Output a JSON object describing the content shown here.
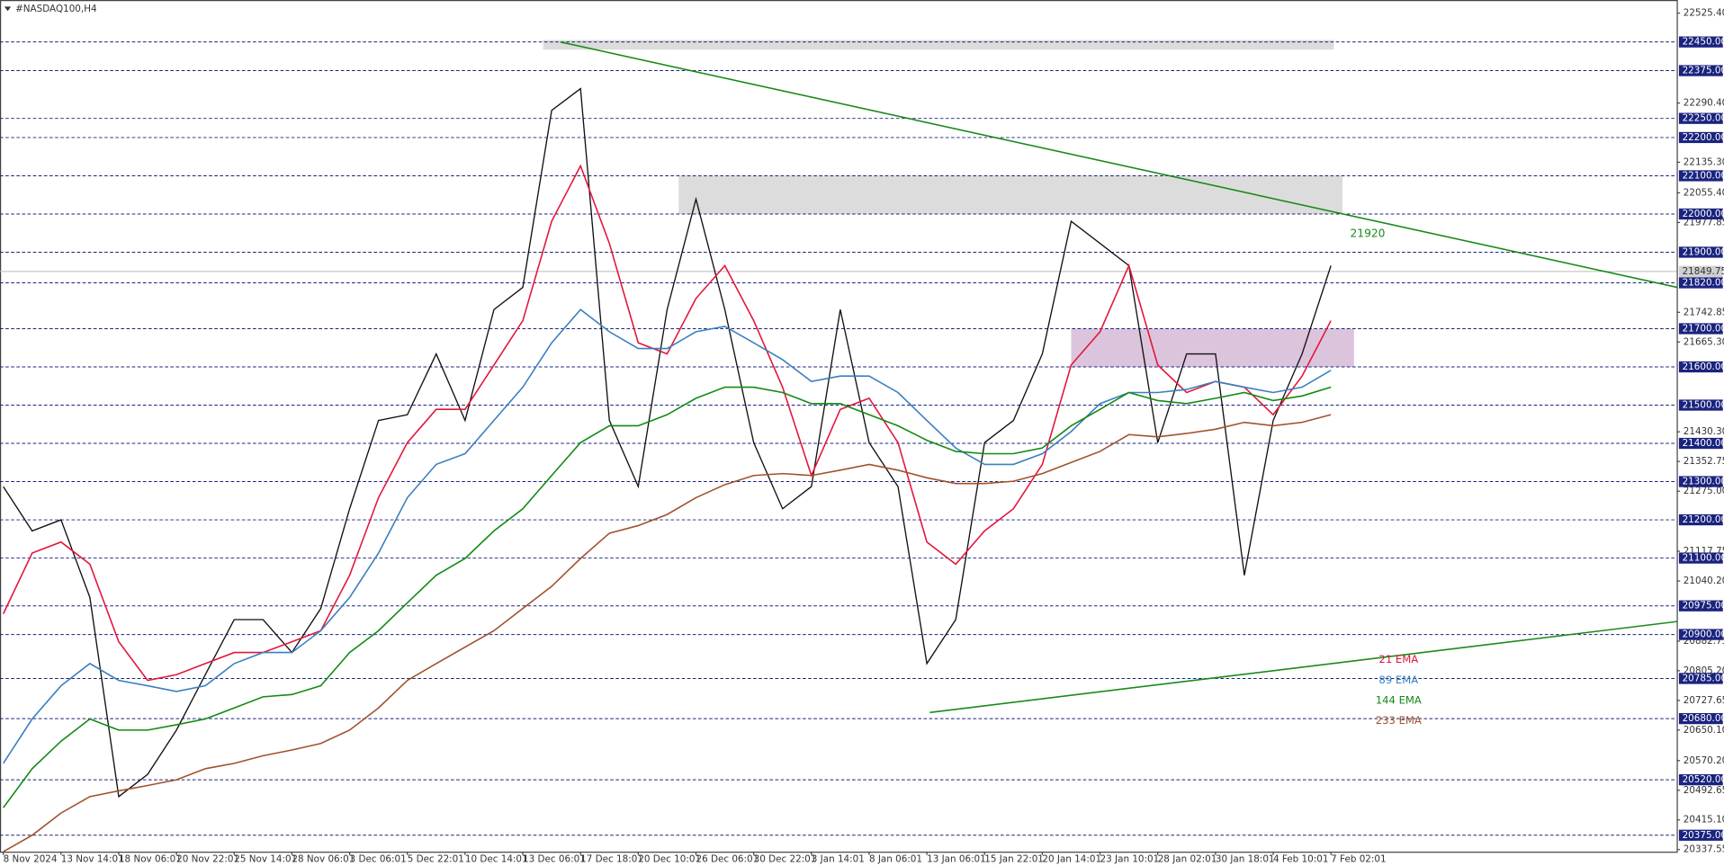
{
  "chart_data": {
    "type": "line",
    "title": "#NASDAQ100,H4",
    "categories": [
      "8 Nov 2024",
      null,
      "13 Nov 14:01",
      null,
      "18 Nov 06:01",
      null,
      "20 Nov 22:01",
      null,
      "25 Nov 14:01",
      null,
      "28 Nov 06:01",
      null,
      "3 Dec 06:01",
      null,
      "5 Dec 22:01",
      null,
      "10 Dec 14:01",
      null,
      "13 Dec 06:01",
      null,
      "17 Dec 18:01",
      null,
      "20 Dec 10:01",
      null,
      "26 Dec 06:01",
      null,
      "30 Dec 22:01",
      null,
      "3 Jan 14:01",
      null,
      "8 Jan 06:01",
      null,
      "13 Jan 06:01",
      null,
      "15 Jan 22:01",
      null,
      "20 Jan 14:01",
      null,
      "23 Jan 10:01",
      null,
      "28 Jan 02:01",
      null,
      "30 Jan 18:01",
      null,
      "4 Feb 10:01",
      null,
      "7 Feb 02:01"
    ],
    "series": [
      {
        "color": "#111111",
        "values": [
          21287,
          21171,
          21200,
          20997,
          20476,
          20534,
          20650,
          20795,
          20939,
          20939,
          20853,
          20968,
          21229,
          21460,
          21475,
          21634,
          21460,
          21750,
          21808,
          22271,
          22328,
          21460,
          21287,
          21750,
          22039,
          21750,
          21402,
          21229,
          21287,
          21750,
          21402,
          21287,
          20824,
          20939,
          21402,
          21460,
          21634,
          21981,
          21923,
          21865,
          21402,
          21634,
          21634,
          21055,
          21460,
          21634,
          21865
        ]
      },
      {
        "name": "21 EMA",
        "color": "#e3163a",
        "values": [
          20954,
          21113,
          21142,
          21084,
          20881,
          20780,
          20795,
          20824,
          20853,
          20853,
          20881,
          20910,
          21055,
          21258,
          21402,
          21489,
          21489,
          21605,
          21721,
          21981,
          22126,
          21923,
          21663,
          21634,
          21779,
          21865,
          21721,
          21547,
          21316,
          21489,
          21518,
          21402,
          21142,
          21084,
          21171,
          21229,
          21345,
          21605,
          21692,
          21865,
          21605,
          21533,
          21562,
          21547,
          21475,
          21576,
          21721
        ]
      },
      {
        "name": "89 EMA",
        "color": "#3a7fc0",
        "values": [
          20563,
          20679,
          20766,
          20824,
          20780,
          20766,
          20751,
          20766,
          20824,
          20853,
          20853,
          20910,
          20997,
          21113,
          21258,
          21345,
          21373,
          21460,
          21547,
          21663,
          21750,
          21692,
          21648,
          21648,
          21692,
          21706,
          21663,
          21619,
          21562,
          21576,
          21576,
          21533,
          21460,
          21388,
          21345,
          21345,
          21373,
          21431,
          21504,
          21533,
          21533,
          21541,
          21562,
          21547,
          21533,
          21547,
          21591
        ]
      },
      {
        "name": "144 EMA",
        "color": "#138a13",
        "values": [
          20447,
          20549,
          20621,
          20679,
          20650,
          20650,
          20664,
          20679,
          20708,
          20737,
          20743,
          20766,
          20853,
          20910,
          20983,
          21055,
          21099,
          21171,
          21229,
          21316,
          21402,
          21446,
          21446,
          21475,
          21518,
          21547,
          21547,
          21533,
          21504,
          21504,
          21475,
          21446,
          21408,
          21379,
          21373,
          21373,
          21388,
          21446,
          21489,
          21533,
          21512,
          21504,
          21518,
          21533,
          21512,
          21524,
          21547
        ]
      },
      {
        "name": "233 EMA",
        "color": "#a0522d",
        "values": [
          20332,
          20375,
          20433,
          20476,
          20491,
          20505,
          20520,
          20549,
          20563,
          20583,
          20598,
          20615,
          20650,
          20708,
          20780,
          20824,
          20867,
          20910,
          20968,
          21026,
          21099,
          21165,
          21185,
          21214,
          21258,
          21292,
          21316,
          21321,
          21316,
          21330,
          21345,
          21330,
          21310,
          21295,
          21295,
          21301,
          21321,
          21350,
          21379,
          21423,
          21417,
          21426,
          21437,
          21455,
          21446,
          21455,
          21475
        ]
      }
    ],
    "ylim": [
      20332,
      22554
    ],
    "yticks": [
      {
        "value": 22525.4,
        "label": "22525.40"
      },
      {
        "value": 22290.4,
        "label": "22290.40"
      },
      {
        "value": 22135.3,
        "label": "22135.30"
      },
      {
        "value": 22055.4,
        "label": "22055.40"
      },
      {
        "value": 21977.85,
        "label": "21977.85"
      },
      {
        "value": 21742.85,
        "label": "21742.85"
      },
      {
        "value": 21665.3,
        "label": "21665.30"
      },
      {
        "value": 21430.3,
        "label": "21430.30"
      },
      {
        "value": 21352.75,
        "label": "21352.75"
      },
      {
        "value": 21275,
        "label": "21275.00"
      },
      {
        "value": 21117.75,
        "label": "21117.75"
      },
      {
        "value": 21040.2,
        "label": "21040.20"
      },
      {
        "value": 20882.75,
        "label": "20882.75"
      },
      {
        "value": 20805.2,
        "label": "20805.20"
      },
      {
        "value": 20727.65,
        "label": "20727.65"
      },
      {
        "value": 20650.1,
        "label": "20650.10"
      },
      {
        "value": 20570.2,
        "label": "20570.20"
      },
      {
        "value": 20492.65,
        "label": "20492.65"
      },
      {
        "value": 20415.1,
        "label": "20415.10"
      },
      {
        "value": 20337.55,
        "label": "20337.55"
      }
    ],
    "levels": [
      {
        "value": 22450,
        "label": "22450.00"
      },
      {
        "value": 22375,
        "label": "22375.00"
      },
      {
        "value": 22250,
        "label": "22250.00"
      },
      {
        "value": 22200,
        "label": "22200.00"
      },
      {
        "value": 22100,
        "label": "22100.00"
      },
      {
        "value": 22000,
        "label": "22000.00"
      },
      {
        "value": 21900,
        "label": "21900.00"
      },
      {
        "value": 21820,
        "label": "21820.00"
      },
      {
        "value": 21700,
        "label": "21700.00"
      },
      {
        "value": 21600,
        "label": "21600.00"
      },
      {
        "value": 21500,
        "label": "21500.00"
      },
      {
        "value": 21400,
        "label": "21400.00"
      },
      {
        "value": 21300,
        "label": "21300.00"
      },
      {
        "value": 21200,
        "label": "21200.00"
      },
      {
        "value": 21100,
        "label": "21100.00"
      },
      {
        "value": 20975,
        "label": "20975.00"
      },
      {
        "value": 20900,
        "label": "20900.00"
      },
      {
        "value": 20785,
        "label": "20785.00"
      },
      {
        "value": 20680,
        "label": "20680.00"
      },
      {
        "value": 20520,
        "label": "20520.00"
      },
      {
        "value": 20375,
        "label": "20375.00"
      }
    ],
    "level_color": "#1a237e",
    "current_price": {
      "value": 21849.75,
      "label": "21849.75"
    },
    "zones": [
      {
        "x": [
          18.7,
          46.1
        ],
        "y": [
          22430,
          22455
        ],
        "color": "#dcdcdc"
      },
      {
        "x": [
          23.4,
          46.4
        ],
        "y": [
          22000,
          22100
        ],
        "color": "#dcdcdc"
      },
      {
        "x": [
          37,
          46.8
        ],
        "y": [
          21600,
          21700
        ],
        "color": "#dcc4dc"
      }
    ],
    "trendlines": [
      {
        "x": [
          19.3,
          58
        ],
        "values": [
          22450,
          21808
        ],
        "color": "#1a8a1a"
      },
      {
        "x": [
          32.1,
          58
        ],
        "values": [
          20696,
          20934
        ],
        "color": "#1a8a1a"
      }
    ],
    "annotation": "21920",
    "annotation_color": "#1a8a1a"
  }
}
